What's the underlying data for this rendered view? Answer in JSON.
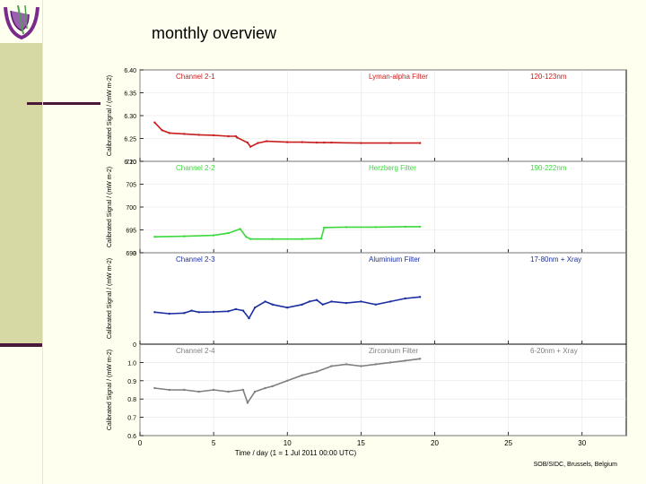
{
  "slide": {
    "title": "monthly overview"
  },
  "chart_data": {
    "type": "line",
    "xlabel": "Time / day (1 = 1 Jul 2011 00:00 UTC)",
    "xlim": [
      0,
      33
    ],
    "xticks": [
      "0",
      "5",
      "10",
      "15",
      "20",
      "25",
      "30"
    ],
    "credit": "SOB/SIDC, Brussels, Belgium",
    "panels": [
      {
        "channel": "Channel 2-1",
        "filter": "Lyman-alpha Filter",
        "band": "120-123nm",
        "ylabel": "Calibrated Signal / (mW m-2)",
        "ylim": [
          6.2,
          6.4
        ],
        "yticks": [
          "6.20",
          "6.25",
          "6.30",
          "6.35",
          "6.40"
        ],
        "color": "#c81e1e",
        "points": [
          [
            1.0,
            6.285
          ],
          [
            1.5,
            6.268
          ],
          [
            2,
            6.262
          ],
          [
            3,
            6.26
          ],
          [
            4,
            6.258
          ],
          [
            5,
            6.257
          ],
          [
            6,
            6.255
          ],
          [
            6.5,
            6.255
          ],
          [
            6.6,
            6.252
          ],
          [
            7.3,
            6.241
          ],
          [
            7.5,
            6.232
          ],
          [
            8,
            6.24
          ],
          [
            8.6,
            6.244
          ],
          [
            10,
            6.242
          ],
          [
            11,
            6.242
          ],
          [
            12,
            6.241
          ],
          [
            12.5,
            6.241
          ],
          [
            13,
            6.241
          ],
          [
            15,
            6.24
          ],
          [
            17,
            6.24
          ],
          [
            19,
            6.24
          ]
        ]
      },
      {
        "channel": "Channel 2-2",
        "filter": "Herzberg Filter",
        "band": "190-222nm",
        "ylabel": "Calibrated Signal / (mW m-2)",
        "ylim": [
          690,
          710
        ],
        "yticks": [
          "690",
          "695",
          "700",
          "705",
          "710"
        ],
        "color": "#3ed83e",
        "points": [
          [
            1.0,
            693.5
          ],
          [
            3,
            693.6
          ],
          [
            5,
            693.8
          ],
          [
            6,
            694.3
          ],
          [
            6.8,
            695.2
          ],
          [
            7.2,
            693.5
          ],
          [
            7.5,
            693.0
          ],
          [
            9,
            693.0
          ],
          [
            11,
            693.0
          ],
          [
            12.3,
            693.1
          ],
          [
            12.5,
            695.5
          ],
          [
            14,
            695.6
          ],
          [
            16,
            695.6
          ],
          [
            18,
            695.7
          ],
          [
            19,
            695.7
          ]
        ]
      },
      {
        "channel": "Channel 2-3",
        "filter": "Aluminium Filter",
        "band": "17-80nm + Xray",
        "ylabel": "Calibrated Signal / (mW m-2)",
        "ylim": [
          0,
          3
        ],
        "yticks": [
          "0",
          "3"
        ],
        "color": "#1c2fa0",
        "points": [
          [
            1.0,
            1.05
          ],
          [
            2,
            1.0
          ],
          [
            3,
            1.02
          ],
          [
            3.5,
            1.1
          ],
          [
            4,
            1.05
          ],
          [
            5,
            1.06
          ],
          [
            6,
            1.08
          ],
          [
            6.5,
            1.15
          ],
          [
            7.0,
            1.1
          ],
          [
            7.4,
            0.85
          ],
          [
            7.8,
            1.2
          ],
          [
            8.5,
            1.4
          ],
          [
            9,
            1.3
          ],
          [
            10,
            1.2
          ],
          [
            11,
            1.3
          ],
          [
            11.5,
            1.4
          ],
          [
            12,
            1.45
          ],
          [
            12.4,
            1.3
          ],
          [
            13,
            1.4
          ],
          [
            14,
            1.35
          ],
          [
            15,
            1.4
          ],
          [
            16,
            1.3
          ],
          [
            17,
            1.4
          ],
          [
            18,
            1.5
          ],
          [
            19,
            1.55
          ]
        ]
      },
      {
        "channel": "Channel 2-4",
        "filter": "Zirconium Filter",
        "band": "6-20nm + Xray",
        "ylabel": "Calibrated Signal / (mW m-2)",
        "ylim": [
          0.6,
          1.1
        ],
        "yticks": [
          "0.6",
          "0.7",
          "0.8",
          "0.9",
          "1.0"
        ],
        "color": "#7f7f7f",
        "points": [
          [
            1.0,
            0.86
          ],
          [
            2,
            0.85
          ],
          [
            3,
            0.85
          ],
          [
            4,
            0.84
          ],
          [
            5,
            0.85
          ],
          [
            6,
            0.84
          ],
          [
            7,
            0.85
          ],
          [
            7.3,
            0.78
          ],
          [
            7.8,
            0.84
          ],
          [
            8.5,
            0.86
          ],
          [
            9,
            0.87
          ],
          [
            10,
            0.9
          ],
          [
            11,
            0.93
          ],
          [
            12,
            0.95
          ],
          [
            13,
            0.98
          ],
          [
            14,
            0.99
          ],
          [
            15,
            0.98
          ],
          [
            16,
            0.99
          ],
          [
            17,
            1.0
          ],
          [
            18,
            1.01
          ],
          [
            19,
            1.02
          ]
        ]
      }
    ]
  }
}
